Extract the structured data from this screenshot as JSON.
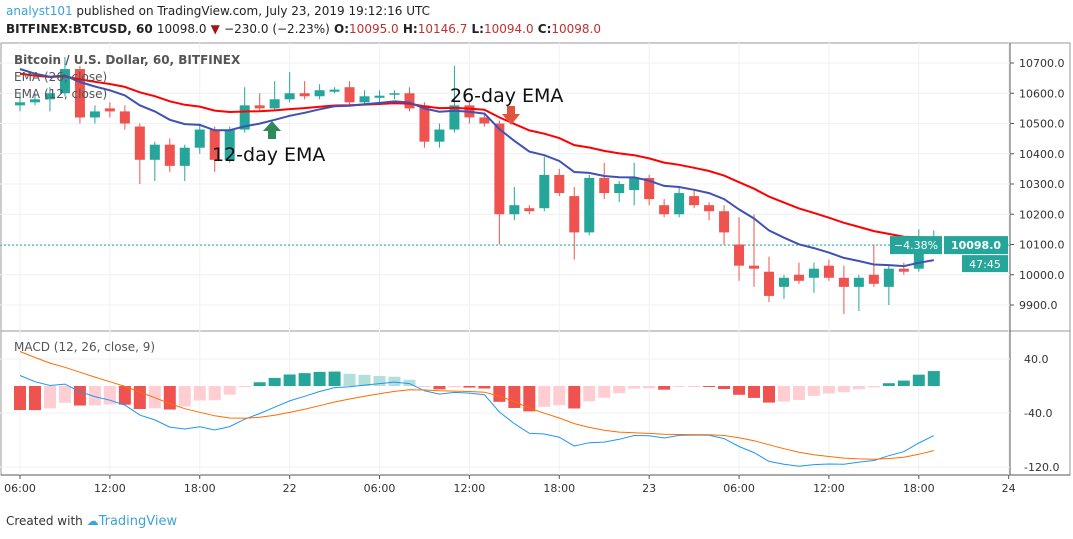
{
  "header": {
    "user": "analyst101",
    "published": " published on TradingView.com, July 23, 2019 19:12:16 UTC",
    "symbol": "BITFINEX:BTCUSD, 60",
    "last": "10098.0",
    "change": "−230.0 (−2.23%)",
    "o_label": "O:",
    "o": "10095.0",
    "h_label": "H:",
    "h": "10146.7",
    "l_label": "L:",
    "l": "10094.0",
    "c_label": "C:",
    "c": "10098.0"
  },
  "legend": {
    "title": "Bitcoin / U.S. Dollar, 60, BITFINEX",
    "ema26": "EMA (26, close)",
    "ema12": "EMA (12, close)",
    "macd": "MACD (12, 26, close, 9)"
  },
  "annotations": {
    "ema12": "12-day EMA",
    "ema26": "26-day EMA"
  },
  "price_tag": {
    "pct": "−4.38%",
    "price": "10098.0",
    "countdown": "47:45"
  },
  "footer": {
    "created": "Created with",
    "brand": "TradingView"
  },
  "colors": {
    "up": "#26a69a",
    "down": "#ef5350",
    "ema12": "#3f51b5",
    "ema26": "#ff0000",
    "macd": "#2196f3",
    "signal": "#ff6d00"
  },
  "chart_data": {
    "type": "candlestick",
    "price_ticks": [
      "10700.0",
      "10600.0",
      "10500.0",
      "10400.0",
      "10300.0",
      "10200.0",
      "10100.0",
      "10000.0",
      "9900.0"
    ],
    "price_range": [
      9850,
      10760
    ],
    "macd_ticks": [
      "40.0",
      "-40.0",
      "-120.0"
    ],
    "macd_range": [
      -130,
      60
    ],
    "time_ticks": [
      "06:00",
      "12:00",
      "18:00",
      "22",
      "06:00",
      "12:00",
      "18:00",
      "23",
      "06:00",
      "12:00",
      "18:00",
      "24"
    ],
    "time_tick_hours": [
      0,
      6,
      12,
      18,
      24,
      30,
      36,
      42,
      48,
      54,
      60,
      66
    ],
    "candles": [
      [
        10560,
        10600,
        10540,
        10570
      ],
      [
        10570,
        10600,
        10560,
        10580
      ],
      [
        10580,
        10620,
        10540,
        10600
      ],
      [
        10600,
        10720,
        10590,
        10680
      ],
      [
        10680,
        10690,
        10500,
        10520
      ],
      [
        10520,
        10560,
        10500,
        10540
      ],
      [
        10550,
        10570,
        10520,
        10540
      ],
      [
        10540,
        10560,
        10480,
        10500
      ],
      [
        10490,
        10500,
        10300,
        10380
      ],
      [
        10380,
        10440,
        10310,
        10430
      ],
      [
        10430,
        10450,
        10340,
        10360
      ],
      [
        10360,
        10430,
        10310,
        10420
      ],
      [
        10420,
        10500,
        10400,
        10480
      ],
      [
        10480,
        10490,
        10340,
        10380
      ],
      [
        10380,
        10490,
        10370,
        10480
      ],
      [
        10480,
        10620,
        10470,
        10560
      ],
      [
        10560,
        10600,
        10540,
        10550
      ],
      [
        10550,
        10640,
        10540,
        10580
      ],
      [
        10580,
        10670,
        10570,
        10600
      ],
      [
        10600,
        10640,
        10580,
        10590
      ],
      [
        10590,
        10630,
        10580,
        10610
      ],
      [
        10605,
        10620,
        10600,
        10612
      ],
      [
        10620,
        10640,
        10560,
        10570
      ],
      [
        10570,
        10610,
        10560,
        10590
      ],
      [
        10585,
        10610,
        10570,
        10592
      ],
      [
        10595,
        10610,
        10580,
        10600
      ],
      [
        10600,
        10620,
        10540,
        10550
      ],
      [
        10560,
        10570,
        10420,
        10440
      ],
      [
        10440,
        10500,
        10420,
        10480
      ],
      [
        10480,
        10690,
        10470,
        10560
      ],
      [
        10560,
        10570,
        10500,
        10520
      ],
      [
        10520,
        10530,
        10490,
        10500
      ],
      [
        10500,
        10510,
        10100,
        10200
      ],
      [
        10200,
        10290,
        10180,
        10230
      ],
      [
        10220,
        10230,
        10200,
        10210
      ],
      [
        10220,
        10390,
        10210,
        10330
      ],
      [
        10330,
        10350,
        10260,
        10270
      ],
      [
        10260,
        10290,
        10050,
        10140
      ],
      [
        10140,
        10330,
        10130,
        10320
      ],
      [
        10320,
        10370,
        10250,
        10270
      ],
      [
        10270,
        10310,
        10240,
        10300
      ],
      [
        10280,
        10370,
        10230,
        10320
      ],
      [
        10320,
        10330,
        10230,
        10250
      ],
      [
        10230,
        10250,
        10190,
        10200
      ],
      [
        10200,
        10290,
        10190,
        10270
      ],
      [
        10260,
        10280,
        10220,
        10230
      ],
      [
        10230,
        10240,
        10180,
        10210
      ],
      [
        10210,
        10230,
        10100,
        10140
      ],
      [
        10100,
        10190,
        9980,
        10030
      ],
      [
        10030,
        10200,
        9960,
        10020
      ],
      [
        10010,
        10060,
        9910,
        9930
      ],
      [
        9960,
        10000,
        9920,
        9990
      ],
      [
        10000,
        10040,
        9970,
        9980
      ],
      [
        9990,
        10040,
        9940,
        10020
      ],
      [
        10030,
        10050,
        9980,
        9990
      ],
      [
        9990,
        10030,
        9870,
        9960
      ],
      [
        9960,
        10000,
        9880,
        9990
      ],
      [
        10000,
        10100,
        9960,
        9970
      ],
      [
        9960,
        10030,
        9900,
        10020
      ],
      [
        10020,
        10040,
        10000,
        10010
      ],
      [
        10020,
        10150,
        10010,
        10100
      ],
      [
        10095,
        10147,
        10094,
        10098
      ]
    ]
  }
}
